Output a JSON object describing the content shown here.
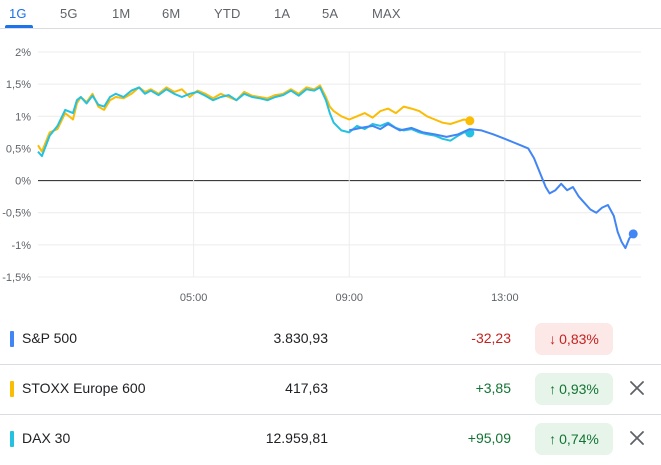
{
  "tabs": [
    {
      "label": "1G",
      "active": true
    },
    {
      "label": "5G",
      "active": false
    },
    {
      "label": "1M",
      "active": false
    },
    {
      "label": "6M",
      "active": false
    },
    {
      "label": "YTD",
      "active": false
    },
    {
      "label": "1A",
      "active": false
    },
    {
      "label": "5A",
      "active": false
    },
    {
      "label": "MAX",
      "active": false
    }
  ],
  "colors": {
    "sp500": "#4285f4",
    "stoxx": "#fbbc04",
    "dax": "#24c1e0",
    "negative_text": "#c5221f",
    "negative_bg": "#fce8e6",
    "positive_text": "#137333",
    "positive_bg": "#e6f4ea"
  },
  "chart_data": {
    "type": "line",
    "y_ticks": [
      "2%",
      "1,5%",
      "1%",
      "0,5%",
      "0%",
      "-0,5%",
      "-1%",
      "-1,5%"
    ],
    "ylim": [
      -1.5,
      2.0
    ],
    "x_ticks": [
      {
        "label": "05:00",
        "hour": 5
      },
      {
        "label": "09:00",
        "hour": 9
      },
      {
        "label": "13:00",
        "hour": 13
      }
    ],
    "xlim": [
      1.0,
      16.5
    ],
    "zero_line": true,
    "series": [
      {
        "name": "STOXX Europe 600",
        "color_key": "stoxx",
        "end_marker": true,
        "points": [
          [
            1.0,
            0.55
          ],
          [
            1.1,
            0.45
          ],
          [
            1.3,
            0.75
          ],
          [
            1.5,
            0.8
          ],
          [
            1.7,
            1.05
          ],
          [
            1.9,
            0.95
          ],
          [
            2.0,
            1.2
          ],
          [
            2.1,
            1.3
          ],
          [
            2.25,
            1.22
          ],
          [
            2.4,
            1.35
          ],
          [
            2.55,
            1.15
          ],
          [
            2.7,
            1.1
          ],
          [
            2.85,
            1.25
          ],
          [
            3.0,
            1.3
          ],
          [
            3.2,
            1.28
          ],
          [
            3.4,
            1.35
          ],
          [
            3.6,
            1.45
          ],
          [
            3.75,
            1.38
          ],
          [
            3.9,
            1.42
          ],
          [
            4.1,
            1.35
          ],
          [
            4.3,
            1.45
          ],
          [
            4.5,
            1.38
          ],
          [
            4.7,
            1.42
          ],
          [
            4.9,
            1.3
          ],
          [
            5.1,
            1.4
          ],
          [
            5.3,
            1.35
          ],
          [
            5.5,
            1.28
          ],
          [
            5.7,
            1.35
          ],
          [
            5.9,
            1.3
          ],
          [
            6.1,
            1.25
          ],
          [
            6.3,
            1.38
          ],
          [
            6.5,
            1.32
          ],
          [
            6.7,
            1.3
          ],
          [
            6.9,
            1.28
          ],
          [
            7.1,
            1.33
          ],
          [
            7.3,
            1.35
          ],
          [
            7.5,
            1.42
          ],
          [
            7.7,
            1.35
          ],
          [
            7.9,
            1.45
          ],
          [
            8.1,
            1.42
          ],
          [
            8.25,
            1.48
          ],
          [
            8.4,
            1.3
          ],
          [
            8.5,
            1.15
          ],
          [
            8.6,
            1.08
          ],
          [
            8.8,
            1.0
          ],
          [
            9.0,
            0.95
          ],
          [
            9.2,
            1.0
          ],
          [
            9.4,
            1.05
          ],
          [
            9.6,
            0.98
          ],
          [
            9.8,
            1.08
          ],
          [
            10.0,
            1.12
          ],
          [
            10.2,
            1.05
          ],
          [
            10.4,
            1.15
          ],
          [
            10.6,
            1.12
          ],
          [
            10.8,
            1.08
          ],
          [
            11.0,
            1.0
          ],
          [
            11.2,
            0.95
          ],
          [
            11.4,
            0.9
          ],
          [
            11.6,
            0.88
          ],
          [
            11.8,
            0.92
          ],
          [
            11.95,
            0.95
          ],
          [
            12.1,
            0.93
          ]
        ]
      },
      {
        "name": "DAX 30",
        "color_key": "dax",
        "end_marker": true,
        "points": [
          [
            1.0,
            0.45
          ],
          [
            1.1,
            0.38
          ],
          [
            1.3,
            0.7
          ],
          [
            1.5,
            0.85
          ],
          [
            1.7,
            1.1
          ],
          [
            1.9,
            1.05
          ],
          [
            2.0,
            1.25
          ],
          [
            2.1,
            1.3
          ],
          [
            2.25,
            1.2
          ],
          [
            2.4,
            1.32
          ],
          [
            2.55,
            1.18
          ],
          [
            2.7,
            1.15
          ],
          [
            2.85,
            1.3
          ],
          [
            3.0,
            1.35
          ],
          [
            3.2,
            1.3
          ],
          [
            3.4,
            1.4
          ],
          [
            3.6,
            1.45
          ],
          [
            3.75,
            1.35
          ],
          [
            3.9,
            1.4
          ],
          [
            4.1,
            1.33
          ],
          [
            4.3,
            1.42
          ],
          [
            4.5,
            1.35
          ],
          [
            4.7,
            1.3
          ],
          [
            4.9,
            1.35
          ],
          [
            5.1,
            1.38
          ],
          [
            5.3,
            1.32
          ],
          [
            5.5,
            1.25
          ],
          [
            5.7,
            1.3
          ],
          [
            5.9,
            1.33
          ],
          [
            6.1,
            1.25
          ],
          [
            6.3,
            1.35
          ],
          [
            6.5,
            1.3
          ],
          [
            6.7,
            1.28
          ],
          [
            6.9,
            1.25
          ],
          [
            7.1,
            1.3
          ],
          [
            7.3,
            1.33
          ],
          [
            7.5,
            1.4
          ],
          [
            7.7,
            1.32
          ],
          [
            7.9,
            1.42
          ],
          [
            8.1,
            1.4
          ],
          [
            8.25,
            1.45
          ],
          [
            8.4,
            1.25
          ],
          [
            8.5,
            1.05
          ],
          [
            8.6,
            0.9
          ],
          [
            8.8,
            0.78
          ],
          [
            9.0,
            0.75
          ],
          [
            9.2,
            0.85
          ],
          [
            9.4,
            0.8
          ],
          [
            9.6,
            0.88
          ],
          [
            9.8,
            0.85
          ],
          [
            10.0,
            0.9
          ],
          [
            10.2,
            0.82
          ],
          [
            10.4,
            0.78
          ],
          [
            10.6,
            0.8
          ],
          [
            10.8,
            0.75
          ],
          [
            11.0,
            0.72
          ],
          [
            11.2,
            0.7
          ],
          [
            11.4,
            0.65
          ],
          [
            11.6,
            0.62
          ],
          [
            11.8,
            0.7
          ],
          [
            11.95,
            0.75
          ],
          [
            12.1,
            0.74
          ]
        ]
      },
      {
        "name": "S&P 500",
        "color_key": "sp500",
        "end_marker": true,
        "points": [
          [
            9.0,
            0.78
          ],
          [
            9.3,
            0.82
          ],
          [
            9.6,
            0.85
          ],
          [
            9.8,
            0.8
          ],
          [
            10.0,
            0.88
          ],
          [
            10.3,
            0.78
          ],
          [
            10.6,
            0.82
          ],
          [
            10.9,
            0.75
          ],
          [
            11.2,
            0.72
          ],
          [
            11.5,
            0.68
          ],
          [
            11.8,
            0.72
          ],
          [
            12.1,
            0.8
          ],
          [
            12.4,
            0.78
          ],
          [
            12.7,
            0.72
          ],
          [
            13.0,
            0.65
          ],
          [
            13.2,
            0.6
          ],
          [
            13.4,
            0.55
          ],
          [
            13.6,
            0.5
          ],
          [
            13.75,
            0.35
          ],
          [
            13.85,
            0.2
          ],
          [
            13.95,
            0.05
          ],
          [
            14.05,
            -0.1
          ],
          [
            14.15,
            -0.2
          ],
          [
            14.3,
            -0.15
          ],
          [
            14.45,
            -0.05
          ],
          [
            14.6,
            -0.15
          ],
          [
            14.75,
            -0.1
          ],
          [
            14.9,
            -0.25
          ],
          [
            15.05,
            -0.35
          ],
          [
            15.2,
            -0.45
          ],
          [
            15.35,
            -0.5
          ],
          [
            15.5,
            -0.42
          ],
          [
            15.65,
            -0.38
          ],
          [
            15.8,
            -0.55
          ],
          [
            15.9,
            -0.8
          ],
          [
            16.0,
            -0.95
          ],
          [
            16.1,
            -1.05
          ],
          [
            16.2,
            -0.9
          ],
          [
            16.3,
            -0.83
          ]
        ]
      }
    ]
  },
  "quotes": [
    {
      "name": "S&P 500",
      "value": "3.830,93",
      "change": "-32,23",
      "pct": "0,83%",
      "direction": "down",
      "color_key": "sp500",
      "removable": false
    },
    {
      "name": "STOXX Europe 600",
      "value": "417,63",
      "change": "+3,85",
      "pct": "0,93%",
      "direction": "up",
      "color_key": "stoxx",
      "removable": true
    },
    {
      "name": "DAX 30",
      "value": "12.959,81",
      "change": "+95,09",
      "pct": "0,74%",
      "direction": "up",
      "color_key": "dax",
      "removable": true
    }
  ]
}
